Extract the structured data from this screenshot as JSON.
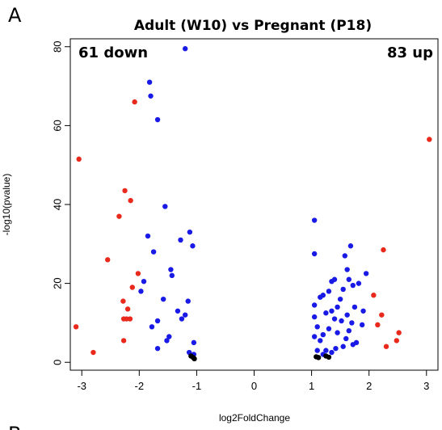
{
  "chart_data": {
    "type": "scatter",
    "panel_label": "A",
    "panel_label_next": "B",
    "title": "Adult (W10) vs Pregnant (P18)",
    "xlabel": "log2FoldChange",
    "ylabel": "-log10(pvalue)",
    "annotations": {
      "left": "61 down",
      "right": "83 up"
    },
    "xlim": [
      -3.2,
      3.2
    ],
    "ylim": [
      -2,
      82
    ],
    "x_ticks": [
      "-3",
      "-2",
      "-1",
      "0",
      "1",
      "2",
      "3"
    ],
    "y_ticks": [
      "0",
      "20",
      "40",
      "60",
      "80"
    ],
    "grid": false,
    "colors": {
      "red": "#e8291c",
      "blue": "#1a1ae6",
      "black": "#000000"
    },
    "series": [
      {
        "color": "red",
        "points": [
          [
            -3.05,
            51.5
          ],
          [
            -2.08,
            66
          ],
          [
            -2.35,
            37
          ],
          [
            -2.25,
            43.5
          ],
          [
            -2.15,
            41
          ],
          [
            -2.55,
            26
          ],
          [
            -2.02,
            22.5
          ],
          [
            -2.12,
            19
          ],
          [
            -2.28,
            15.5
          ],
          [
            -2.2,
            13.5
          ],
          [
            -2.27,
            11
          ],
          [
            -2.22,
            11
          ],
          [
            -2.16,
            11
          ],
          [
            -2.27,
            5.5
          ],
          [
            -3.1,
            9
          ],
          [
            -2.8,
            2.5
          ],
          [
            3.05,
            56.5
          ],
          [
            2.25,
            28.5
          ],
          [
            2.08,
            17
          ],
          [
            2.22,
            12
          ],
          [
            2.15,
            9.5
          ],
          [
            2.48,
            5.5
          ],
          [
            2.52,
            7.5
          ],
          [
            2.3,
            4
          ]
        ]
      },
      {
        "color": "blue",
        "points": [
          [
            -1.2,
            79.5
          ],
          [
            -1.82,
            71
          ],
          [
            -1.8,
            67.5
          ],
          [
            -1.68,
            61.5
          ],
          [
            -1.55,
            39.5
          ],
          [
            -1.12,
            33
          ],
          [
            -1.07,
            29.5
          ],
          [
            -1.85,
            32
          ],
          [
            -1.75,
            28
          ],
          [
            -1.28,
            31
          ],
          [
            -1.45,
            23.5
          ],
          [
            -1.43,
            22
          ],
          [
            -1.92,
            20.5
          ],
          [
            -1.97,
            18
          ],
          [
            -1.58,
            16
          ],
          [
            -1.15,
            15.5
          ],
          [
            -1.33,
            13
          ],
          [
            -1.2,
            12
          ],
          [
            -1.26,
            11
          ],
          [
            -1.68,
            10.5
          ],
          [
            -1.78,
            9
          ],
          [
            -1.48,
            6.5
          ],
          [
            -1.52,
            5.5
          ],
          [
            -1.68,
            3.5
          ],
          [
            -1.05,
            5
          ],
          [
            -1.13,
            2.5
          ],
          [
            -1.05,
            2
          ],
          [
            1.05,
            36
          ],
          [
            1.05,
            27.5
          ],
          [
            1.68,
            29.5
          ],
          [
            1.58,
            27
          ],
          [
            1.62,
            23.5
          ],
          [
            1.95,
            22.5
          ],
          [
            1.65,
            21
          ],
          [
            1.4,
            21
          ],
          [
            1.35,
            20.5
          ],
          [
            1.82,
            20
          ],
          [
            1.72,
            19.5
          ],
          [
            1.55,
            18.5
          ],
          [
            1.3,
            18
          ],
          [
            1.5,
            16
          ],
          [
            1.2,
            17
          ],
          [
            1.15,
            16.5
          ],
          [
            1.05,
            14.5
          ],
          [
            1.45,
            14
          ],
          [
            1.75,
            14
          ],
          [
            1.9,
            13
          ],
          [
            1.35,
            13
          ],
          [
            1.25,
            12.5
          ],
          [
            1.62,
            12
          ],
          [
            1.05,
            11.5
          ],
          [
            1.4,
            11
          ],
          [
            1.52,
            10.5
          ],
          [
            1.7,
            10
          ],
          [
            1.88,
            9.5
          ],
          [
            1.1,
            9
          ],
          [
            1.3,
            8.5
          ],
          [
            1.65,
            8
          ],
          [
            1.45,
            7.5
          ],
          [
            1.2,
            7
          ],
          [
            1.05,
            6.5
          ],
          [
            1.6,
            6
          ],
          [
            1.15,
            5.5
          ],
          [
            1.78,
            5
          ],
          [
            1.72,
            4.5
          ],
          [
            1.55,
            4
          ],
          [
            1.42,
            3.5
          ],
          [
            1.25,
            3
          ],
          [
            1.1,
            3
          ],
          [
            1.35,
            2.5
          ],
          [
            1.2,
            2
          ]
        ]
      },
      {
        "color": "black",
        "points": [
          [
            -1.06,
            1.2
          ],
          [
            -1.1,
            1.6
          ],
          [
            -1.04,
            0.9
          ],
          [
            1.08,
            1.4
          ],
          [
            1.12,
            1.2
          ],
          [
            1.25,
            1.6
          ],
          [
            1.3,
            1.3
          ]
        ]
      }
    ]
  }
}
